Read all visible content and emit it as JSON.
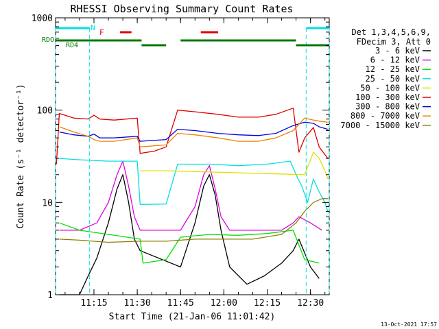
{
  "chart_data": {
    "type": "line",
    "title": "RHESSI Observing Summary Count Rates",
    "xlabel": "Start Time (21-Jan-06 11:01:42)",
    "ylabel": "Count Rate (s⁻¹ detector⁻¹)",
    "y_scale": "log",
    "ylim": [
      1,
      1000
    ],
    "xlim": [
      "11:01:42",
      "12:36:30"
    ],
    "x_ticks": [
      "11:15",
      "11:30",
      "11:45",
      "12:00",
      "12:15",
      "12:30"
    ],
    "y_ticks": [
      "1",
      "10",
      "100",
      "1000"
    ],
    "legend_header": [
      "Det 1,3,4,5,6,9,",
      "FDecim 3, Att 0"
    ],
    "legend_position": "right",
    "footer_date": "13-Oct-2021 17:57",
    "flags": {
      "N_label": "N",
      "F_label": "F",
      "RD0_label": "RDO",
      "RD4_label": "RD4",
      "night": [
        [
          "11:01:42",
          "11:13:30"
        ],
        [
          "12:28:30",
          "12:36:30"
        ]
      ],
      "flare": [
        [
          "11:24:00",
          "11:28:00"
        ],
        [
          "11:52:00",
          "11:58:00"
        ]
      ],
      "rd0": [
        [
          "11:01:42",
          "11:31:30"
        ],
        [
          "11:45:00",
          "12:25:00"
        ]
      ],
      "rd4": [
        [
          "11:31:30",
          "11:40:00"
        ],
        [
          "12:25:00",
          "12:36:30"
        ]
      ]
    },
    "data_gaps": [
      [
        "11:31:00",
        "11:44:30"
      ],
      [
        "12:24:30",
        "12:28:30"
      ]
    ],
    "series": [
      {
        "name": "3 - 6 keV",
        "color": "#000000",
        "points": [
          [
            "11:03",
            1
          ],
          [
            "11:10",
            1
          ],
          [
            "11:13",
            1.6
          ],
          [
            "11:16",
            2.5
          ],
          [
            "11:20",
            6
          ],
          [
            "11:23",
            14
          ],
          [
            "11:25",
            20
          ],
          [
            "11:27",
            10
          ],
          [
            "11:29",
            4
          ],
          [
            "11:31",
            3
          ],
          [
            "11:45",
            2
          ],
          [
            "11:50",
            6
          ],
          [
            "11:53",
            15
          ],
          [
            "11:55",
            20
          ],
          [
            "11:57",
            12
          ],
          [
            "11:59",
            5
          ],
          [
            "12:02",
            2
          ],
          [
            "12:08",
            1.3
          ],
          [
            "12:14",
            1.6
          ],
          [
            "12:20",
            2.2
          ],
          [
            "12:24",
            3
          ],
          [
            "12:26",
            4
          ],
          [
            "12:30",
            2
          ],
          [
            "12:33",
            1.5
          ]
        ]
      },
      {
        "name": "6 - 12 keV",
        "color": "#e000e0",
        "points": [
          [
            "11:03",
            5
          ],
          [
            "11:10",
            5
          ],
          [
            "11:16",
            6
          ],
          [
            "11:20",
            10
          ],
          [
            "11:23",
            20
          ],
          [
            "11:25",
            28
          ],
          [
            "11:27",
            15
          ],
          [
            "11:29",
            7
          ],
          [
            "11:31",
            5
          ],
          [
            "11:45",
            5
          ],
          [
            "11:50",
            9
          ],
          [
            "11:53",
            20
          ],
          [
            "11:55",
            25
          ],
          [
            "11:57",
            14
          ],
          [
            "11:59",
            7
          ],
          [
            "12:02",
            5
          ],
          [
            "12:10",
            5
          ],
          [
            "12:20",
            5
          ],
          [
            "12:24",
            6
          ],
          [
            "12:26",
            7
          ],
          [
            "12:30",
            6
          ],
          [
            "12:34",
            5
          ]
        ]
      },
      {
        "name": "12 - 25 keV",
        "color": "#00e000",
        "points": [
          [
            "11:03",
            6
          ],
          [
            "11:10",
            5
          ],
          [
            "11:20",
            4.5
          ],
          [
            "11:31",
            4
          ],
          [
            "11:32",
            2.2
          ],
          [
            "11:40",
            2.4
          ],
          [
            "11:45",
            4.2
          ],
          [
            "11:55",
            4.5
          ],
          [
            "12:05",
            4.4
          ],
          [
            "12:15",
            4.6
          ],
          [
            "12:24",
            5
          ],
          [
            "12:28",
            2.4
          ],
          [
            "12:33",
            2.2
          ]
        ]
      },
      {
        "name": "25 - 50 keV",
        "color": "#00e0e0",
        "points": [
          [
            "11:03",
            30
          ],
          [
            "11:10",
            29
          ],
          [
            "11:20",
            28
          ],
          [
            "11:30",
            28
          ],
          [
            "11:31",
            9.5
          ],
          [
            "11:40",
            9.6
          ],
          [
            "11:44",
            26
          ],
          [
            "11:55",
            26
          ],
          [
            "12:05",
            25
          ],
          [
            "12:15",
            26
          ],
          [
            "12:23",
            28
          ],
          [
            "12:25",
            20
          ],
          [
            "12:27",
            15
          ],
          [
            "12:29",
            10
          ],
          [
            "12:31",
            18
          ],
          [
            "12:33",
            13
          ],
          [
            "12:35",
            10
          ],
          [
            "12:36",
            8
          ]
        ]
      },
      {
        "name": "50 - 100 keV",
        "color": "#e0e000",
        "points": [
          [
            "11:31",
            22
          ],
          [
            "11:40",
            22
          ],
          [
            "12:28",
            20
          ],
          [
            "12:31",
            35
          ],
          [
            "12:33",
            30
          ],
          [
            "12:35",
            22
          ],
          [
            "12:36",
            18
          ]
        ]
      },
      {
        "name": "100 - 300 keV",
        "color": "#e00000",
        "points": [
          [
            "11:02",
            26
          ],
          [
            "11:03",
            92
          ],
          [
            "11:08",
            82
          ],
          [
            "11:13",
            80
          ],
          [
            "11:15",
            88
          ],
          [
            "11:17",
            80
          ],
          [
            "11:22",
            78
          ],
          [
            "11:30",
            82
          ],
          [
            "11:31",
            34
          ],
          [
            "11:36",
            36
          ],
          [
            "11:40",
            40
          ],
          [
            "11:44",
            100
          ],
          [
            "11:50",
            96
          ],
          [
            "11:58",
            90
          ],
          [
            "12:05",
            84
          ],
          [
            "12:12",
            84
          ],
          [
            "12:18",
            90
          ],
          [
            "12:24",
            105
          ],
          [
            "12:26",
            35
          ],
          [
            "12:28",
            50
          ],
          [
            "12:31",
            65
          ],
          [
            "12:33",
            40
          ],
          [
            "12:36",
            30
          ]
        ]
      },
      {
        "name": "300 - 800 keV",
        "color": "#0000e0",
        "points": [
          [
            "11:03",
            58
          ],
          [
            "11:08",
            54
          ],
          [
            "11:13",
            52
          ],
          [
            "11:15",
            55
          ],
          [
            "11:17",
            50
          ],
          [
            "11:22",
            50
          ],
          [
            "11:30",
            52
          ],
          [
            "11:31",
            46
          ],
          [
            "11:40",
            48
          ],
          [
            "11:44",
            62
          ],
          [
            "11:50",
            60
          ],
          [
            "11:58",
            56
          ],
          [
            "12:05",
            54
          ],
          [
            "12:12",
            53
          ],
          [
            "12:18",
            56
          ],
          [
            "12:24",
            68
          ],
          [
            "12:28",
            74
          ],
          [
            "12:31",
            72
          ],
          [
            "12:33",
            66
          ],
          [
            "12:36",
            62
          ]
        ]
      },
      {
        "name": "800 - 7000 keV",
        "color": "#f08000",
        "points": [
          [
            "11:03",
            66
          ],
          [
            "11:08",
            58
          ],
          [
            "11:13",
            52
          ],
          [
            "11:15",
            48
          ],
          [
            "11:17",
            46
          ],
          [
            "11:22",
            46
          ],
          [
            "11:30",
            50
          ],
          [
            "11:31",
            40
          ],
          [
            "11:40",
            42
          ],
          [
            "11:44",
            56
          ],
          [
            "11:50",
            54
          ],
          [
            "11:58",
            50
          ],
          [
            "12:05",
            46
          ],
          [
            "12:12",
            46
          ],
          [
            "12:18",
            50
          ],
          [
            "12:24",
            60
          ],
          [
            "12:28",
            82
          ],
          [
            "12:31",
            78
          ],
          [
            "12:33",
            76
          ],
          [
            "12:36",
            74
          ]
        ]
      },
      {
        "name": "7000 - 15000 keV",
        "color": "#8b8000",
        "points": [
          [
            "11:03",
            4
          ],
          [
            "11:10",
            3.9
          ],
          [
            "11:20",
            3.7
          ],
          [
            "11:31",
            3.8
          ],
          [
            "11:40",
            3.8
          ],
          [
            "11:50",
            4
          ],
          [
            "12:00",
            4
          ],
          [
            "12:10",
            4
          ],
          [
            "12:20",
            4.5
          ],
          [
            "12:25",
            6
          ],
          [
            "12:28",
            8
          ],
          [
            "12:31",
            10
          ],
          [
            "12:34",
            11
          ],
          [
            "12:36",
            11
          ]
        ]
      }
    ]
  }
}
